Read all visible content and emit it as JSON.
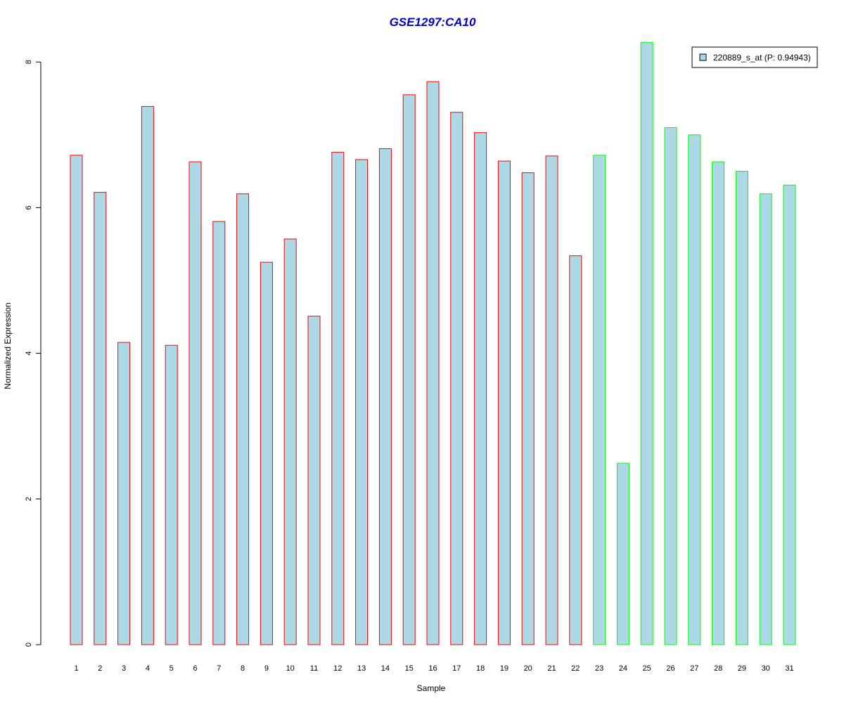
{
  "chart_data": {
    "type": "bar",
    "title": "GSE1297:CA10",
    "xlabel": "Sample",
    "ylabel": "Normalized Expression",
    "categories": [
      "1",
      "2",
      "3",
      "4",
      "5",
      "6",
      "7",
      "8",
      "9",
      "10",
      "11",
      "12",
      "13",
      "14",
      "15",
      "16",
      "17",
      "18",
      "19",
      "20",
      "21",
      "22",
      "23",
      "24",
      "25",
      "26",
      "27",
      "28",
      "29",
      "30",
      "31"
    ],
    "values": [
      6.72,
      6.21,
      4.15,
      7.39,
      4.11,
      6.63,
      5.81,
      6.19,
      5.25,
      5.57,
      4.51,
      6.76,
      6.66,
      6.81,
      7.55,
      7.73,
      7.31,
      7.03,
      6.64,
      6.48,
      6.71,
      5.34,
      6.72,
      2.49,
      8.27,
      7.1,
      7.0,
      6.63,
      6.5,
      6.19,
      6.31
    ],
    "groups": [
      "red",
      "red",
      "red",
      "red",
      "red",
      "red",
      "red",
      "red",
      "red",
      "red",
      "red",
      "red",
      "red",
      "red",
      "red",
      "red",
      "red",
      "red",
      "red",
      "red",
      "red",
      "red",
      "green",
      "green",
      "green",
      "green",
      "green",
      "green",
      "green",
      "green",
      "green"
    ],
    "ylim": [
      0,
      8.3
    ],
    "yticks": [
      "0",
      "2",
      "4",
      "6",
      "8"
    ],
    "legend": {
      "label": "220889_s_at (P: 0.94943)",
      "placement": "top-right"
    },
    "colors": {
      "title": "#0000cc",
      "bar_fill": "#add8e6",
      "border_red": "#ff0000",
      "border_green": "#00ff00",
      "axis": "#000000"
    },
    "grid": false
  }
}
